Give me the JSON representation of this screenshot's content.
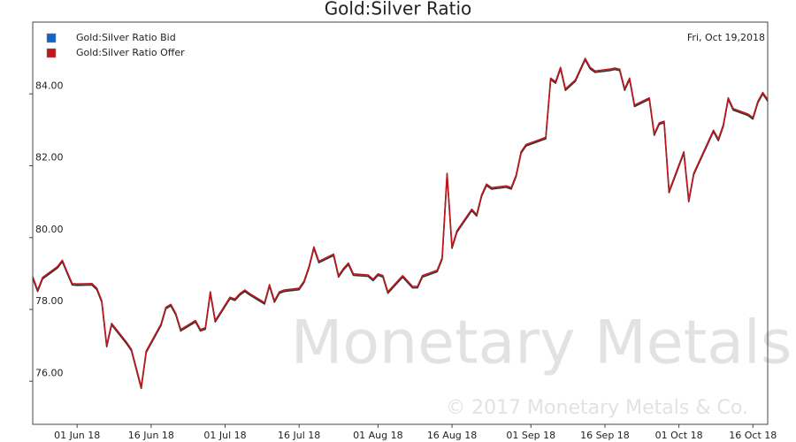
{
  "chart_data": {
    "type": "line",
    "title": "Gold:Silver Ratio",
    "annotation": "Fri, Oct 19,2018",
    "watermark": "Monetary Metals",
    "copyright": "© 2017 Monetary Metals & Co.",
    "x": [
      "2018-05-23",
      "2018-05-24",
      "2018-05-25",
      "2018-05-28",
      "2018-05-29",
      "2018-05-30",
      "2018-05-31",
      "2018-06-01",
      "2018-06-04",
      "2018-06-05",
      "2018-06-06",
      "2018-06-07",
      "2018-06-08",
      "2018-06-11",
      "2018-06-12",
      "2018-06-14",
      "2018-06-15",
      "2018-06-18",
      "2018-06-19",
      "2018-06-20",
      "2018-06-21",
      "2018-06-22",
      "2018-06-25",
      "2018-06-26",
      "2018-06-27",
      "2018-06-28",
      "2018-06-29",
      "2018-07-02",
      "2018-07-03",
      "2018-07-04",
      "2018-07-05",
      "2018-07-06",
      "2018-07-09",
      "2018-07-10",
      "2018-07-11",
      "2018-07-12",
      "2018-07-13",
      "2018-07-16",
      "2018-07-17",
      "2018-07-18",
      "2018-07-19",
      "2018-07-20",
      "2018-07-23",
      "2018-07-24",
      "2018-07-25",
      "2018-07-26",
      "2018-07-27",
      "2018-07-30",
      "2018-07-31",
      "2018-08-01",
      "2018-08-02",
      "2018-08-03",
      "2018-08-06",
      "2018-08-07",
      "2018-08-08",
      "2018-08-09",
      "2018-08-10",
      "2018-08-13",
      "2018-08-14",
      "2018-08-15",
      "2018-08-16",
      "2018-08-17",
      "2018-08-20",
      "2018-08-21",
      "2018-08-22",
      "2018-08-23",
      "2018-08-24",
      "2018-08-27",
      "2018-08-28",
      "2018-08-29",
      "2018-08-30",
      "2018-08-31",
      "2018-09-03",
      "2018-09-04",
      "2018-09-05",
      "2018-09-06",
      "2018-09-07",
      "2018-09-08",
      "2018-09-10",
      "2018-09-12",
      "2018-09-13",
      "2018-09-14",
      "2018-09-17",
      "2018-09-18",
      "2018-09-19",
      "2018-09-20",
      "2018-09-21",
      "2018-09-22",
      "2018-09-25",
      "2018-09-26",
      "2018-09-27",
      "2018-09-28",
      "2018-09-29",
      "2018-10-02",
      "2018-10-03",
      "2018-10-04",
      "2018-10-05",
      "2018-10-08",
      "2018-10-09",
      "2018-10-10",
      "2018-10-11",
      "2018-10-12",
      "2018-10-15",
      "2018-10-16",
      "2018-10-17",
      "2018-10-18",
      "2018-10-19"
    ],
    "series": [
      {
        "name": "Gold:Silver Ratio Bid",
        "color": "#1565c0",
        "line_color": "#333333",
        "values": [
          78.87,
          78.5,
          78.85,
          79.15,
          79.33,
          79.0,
          78.68,
          78.67,
          78.68,
          78.55,
          78.2,
          76.96,
          77.57,
          77.05,
          76.85,
          75.8,
          76.8,
          77.55,
          78.02,
          78.1,
          77.85,
          77.4,
          77.65,
          77.4,
          77.45,
          78.45,
          77.65,
          78.3,
          78.25,
          78.4,
          78.5,
          78.4,
          78.15,
          78.65,
          78.2,
          78.45,
          78.5,
          78.55,
          78.75,
          79.15,
          79.7,
          79.3,
          79.5,
          78.9,
          79.1,
          79.25,
          78.95,
          78.92,
          78.8,
          78.95,
          78.9,
          78.45,
          78.9,
          78.75,
          78.6,
          78.6,
          78.9,
          79.05,
          79.4,
          81.75,
          79.7,
          80.15,
          80.75,
          80.6,
          81.15,
          81.45,
          81.35,
          81.4,
          81.35,
          81.7,
          82.35,
          82.55,
          82.7,
          82.75,
          84.4,
          84.3,
          84.7,
          84.1,
          84.35,
          84.95,
          84.7,
          84.6,
          84.65,
          84.68,
          84.65,
          84.1,
          84.4,
          83.65,
          83.85,
          82.85,
          83.15,
          83.2,
          81.25,
          82.35,
          81.0,
          81.75,
          82.05,
          82.95,
          82.7,
          83.1,
          83.85,
          83.55,
          83.4,
          83.3,
          83.75,
          84.0,
          83.8
        ]
      },
      {
        "name": "Gold:Silver Ratio Offer",
        "color": "#c0161d",
        "line_color": "#c0161d",
        "values": [
          78.91,
          78.54,
          78.89,
          79.19,
          79.37,
          79.04,
          78.72,
          78.71,
          78.72,
          78.59,
          78.24,
          77.0,
          77.61,
          77.09,
          76.89,
          75.84,
          76.84,
          77.59,
          78.06,
          78.14,
          77.89,
          77.44,
          77.69,
          77.44,
          77.49,
          78.49,
          77.69,
          78.34,
          78.29,
          78.44,
          78.54,
          78.44,
          78.19,
          78.69,
          78.24,
          78.49,
          78.54,
          78.59,
          78.79,
          79.19,
          79.74,
          79.34,
          79.54,
          78.94,
          79.14,
          79.29,
          78.99,
          78.96,
          78.84,
          78.99,
          78.94,
          78.49,
          78.94,
          78.79,
          78.64,
          78.64,
          78.94,
          79.09,
          79.44,
          81.79,
          79.74,
          80.19,
          80.79,
          80.64,
          81.19,
          81.49,
          81.39,
          81.44,
          81.39,
          81.74,
          82.39,
          82.59,
          82.74,
          82.79,
          84.44,
          84.34,
          84.74,
          84.14,
          84.39,
          84.99,
          84.74,
          84.64,
          84.69,
          84.72,
          84.69,
          84.14,
          84.44,
          83.69,
          83.89,
          82.89,
          83.19,
          83.24,
          81.29,
          82.39,
          81.04,
          81.79,
          82.09,
          82.99,
          82.74,
          83.14,
          83.89,
          83.59,
          83.44,
          83.34,
          83.79,
          84.04,
          83.84
        ]
      }
    ],
    "xlim": [
      "2018-05-23",
      "2018-10-19"
    ],
    "xticks": [
      {
        "value": "2018-06-01",
        "label": "01 Jun 18"
      },
      {
        "value": "2018-06-16",
        "label": "16 Jun 18"
      },
      {
        "value": "2018-07-01",
        "label": "01 Jul 18"
      },
      {
        "value": "2018-07-16",
        "label": "16 Jul 18"
      },
      {
        "value": "2018-08-01",
        "label": "01 Aug 18"
      },
      {
        "value": "2018-08-16",
        "label": "16 Aug 18"
      },
      {
        "value": "2018-09-01",
        "label": "01 Sep 18"
      },
      {
        "value": "2018-09-16",
        "label": "16 Sep 18"
      },
      {
        "value": "2018-10-01",
        "label": "01 Oct 18"
      },
      {
        "value": "2018-10-16",
        "label": "16 Oct 18"
      }
    ],
    "ylim": [
      74.8,
      86
    ],
    "yticks": [
      {
        "value": 76,
        "label": "76.00"
      },
      {
        "value": 78,
        "label": "78.00"
      },
      {
        "value": 80,
        "label": "80.00"
      },
      {
        "value": 82,
        "label": "82.00"
      },
      {
        "value": 84,
        "label": "84.00"
      }
    ],
    "legend": "upper left"
  }
}
